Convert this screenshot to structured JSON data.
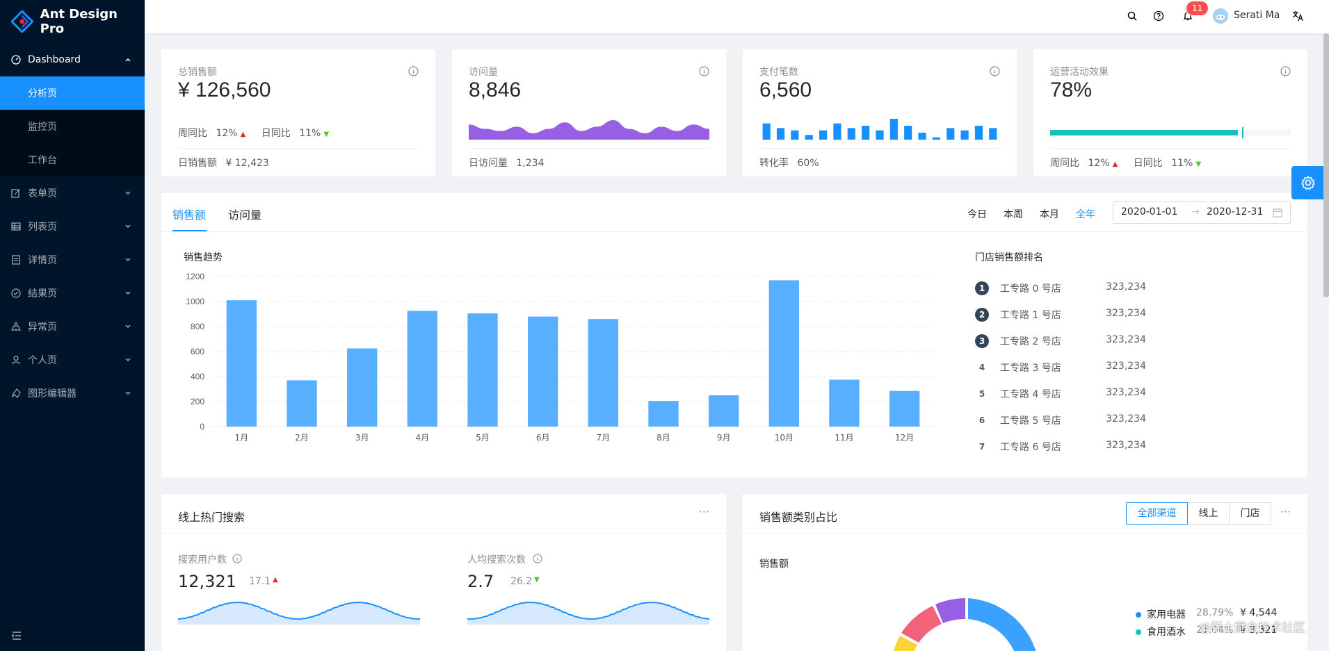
{
  "app": {
    "title": "Ant Design Pro"
  },
  "sidebar": {
    "dashboard_label": "Dashboard",
    "submenu": [
      {
        "label": "分析页",
        "active": true
      },
      {
        "label": "监控页",
        "active": false
      },
      {
        "label": "工作台",
        "active": false
      }
    ],
    "items": [
      {
        "label": "表单页",
        "icon": "form-icon"
      },
      {
        "label": "列表页",
        "icon": "table-icon"
      },
      {
        "label": "详情页",
        "icon": "profile-icon"
      },
      {
        "label": "结果页",
        "icon": "check-circle-icon"
      },
      {
        "label": "异常页",
        "icon": "warning-icon"
      },
      {
        "label": "个人页",
        "icon": "user-icon"
      },
      {
        "label": "图形编辑器",
        "icon": "highlight-icon"
      }
    ]
  },
  "header": {
    "notification_count": "11",
    "username": "Serati Ma"
  },
  "stats": {
    "sales": {
      "title": "总销售额",
      "value": "¥ 126,560",
      "wow_label": "周同比",
      "wow": "12%",
      "dod_label": "日同比",
      "dod": "11%",
      "footer_label": "日销售额",
      "footer_value": "¥ 12,423"
    },
    "visits": {
      "title": "访问量",
      "value": "8,846",
      "footer_label": "日访问量",
      "footer_value": "1,234",
      "trend": [
        7,
        5,
        4,
        6,
        3,
        5,
        8,
        4,
        6,
        9,
        5,
        3,
        6,
        4,
        7,
        5
      ]
    },
    "payments": {
      "title": "支付笔数",
      "value": "6,560",
      "footer_label": "转化率",
      "footer_value": "60%",
      "bars": [
        7,
        5,
        4,
        2,
        4,
        7,
        5,
        6,
        4,
        9,
        6,
        3,
        1,
        5,
        4,
        6,
        5
      ]
    },
    "operations": {
      "title": "运营活动效果",
      "value": "78%",
      "progress": 78,
      "wow_label": "周同比",
      "wow": "12%",
      "dod_label": "日同比",
      "dod": "11%"
    }
  },
  "sales_card": {
    "tabs": [
      "销售额",
      "访问量"
    ],
    "ranges": [
      "今日",
      "本周",
      "本月",
      "全年"
    ],
    "date_start": "2020-01-01",
    "date_end": "2020-12-31",
    "trend_title": "销售趋势",
    "rank_title": "门店销售额排名",
    "ranking": [
      {
        "rank": "1",
        "name": "工专路 0 号店",
        "value": "323,234"
      },
      {
        "rank": "2",
        "name": "工专路 1 号店",
        "value": "323,234"
      },
      {
        "rank": "3",
        "name": "工专路 2 号店",
        "value": "323,234"
      },
      {
        "rank": "4",
        "name": "工专路 3 号店",
        "value": "323,234"
      },
      {
        "rank": "5",
        "name": "工专路 4 号店",
        "value": "323,234"
      },
      {
        "rank": "6",
        "name": "工专路 5 号店",
        "value": "323,234"
      },
      {
        "rank": "7",
        "name": "工专路 6 号店",
        "value": "323,234"
      }
    ]
  },
  "chart_data": {
    "type": "bar",
    "title": "销售趋势",
    "categories": [
      "1月",
      "2月",
      "3月",
      "4月",
      "5月",
      "6月",
      "7月",
      "8月",
      "9月",
      "10月",
      "11月",
      "12月"
    ],
    "values": [
      1010,
      370,
      625,
      925,
      905,
      880,
      860,
      205,
      250,
      1170,
      375,
      285
    ],
    "ylim": [
      0,
      1200
    ],
    "yticks": [
      0,
      200,
      400,
      600,
      800,
      1000,
      1200
    ],
    "color": "#58afff"
  },
  "search_card": {
    "title": "线上热门搜索",
    "users_label": "搜索用户数",
    "users_value": "12,321",
    "users_change": "17.1",
    "searches_label": "人均搜索次数",
    "searches_value": "2.7",
    "searches_change": "26.2"
  },
  "category_card": {
    "title": "销售额类别占比",
    "segments": [
      "全部渠道",
      "线上",
      "门店"
    ],
    "subtitle": "销售额",
    "legend": [
      {
        "name": "家用电器",
        "percent": "28.79%",
        "value": "¥ 4,544",
        "color": "#1890ff"
      },
      {
        "name": "食用酒水",
        "percent": "21.04%",
        "value": "¥ 3,321",
        "color": "#13c2c2"
      }
    ]
  },
  "watermark": "@稀土掘金技术社区",
  "colors": {
    "primary": "#1890ff",
    "sider": "#001529",
    "purple": "#975fe4",
    "teal": "#13c2c2"
  }
}
